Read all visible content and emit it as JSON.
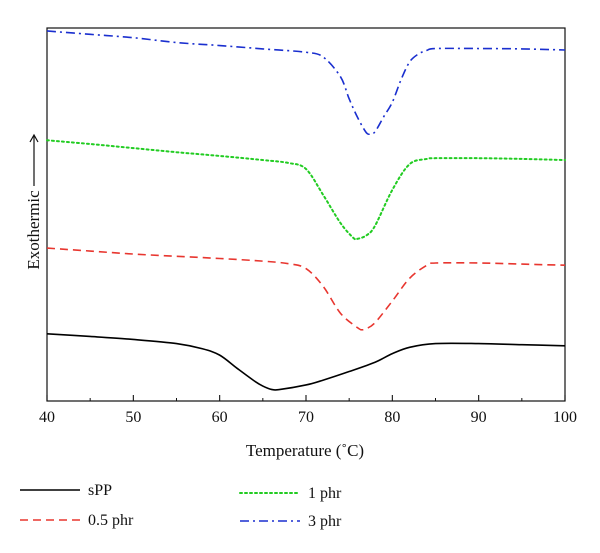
{
  "chart_data": {
    "type": "line",
    "xlabel": "Temperature (˚C)",
    "ylabel": "Exothermic",
    "xlim": [
      40,
      100
    ],
    "xticks": [
      40,
      50,
      60,
      70,
      80,
      90,
      100
    ],
    "ylim": [
      0,
      100
    ],
    "y_ticks_shown": false,
    "grid": false,
    "legend_position": "bottom",
    "series": [
      {
        "name": "sPP",
        "color": "#000000",
        "dash": "solid",
        "x": [
          40,
          45,
          50,
          55,
          58,
          60,
          62,
          64,
          65,
          66,
          67,
          70,
          72,
          75,
          78,
          80,
          82,
          85,
          90,
          95,
          100
        ],
        "y": [
          18.0,
          17.3,
          16.5,
          15.4,
          14.0,
          12.3,
          8.8,
          5.4,
          4.0,
          3.1,
          3.1,
          4.3,
          5.6,
          7.9,
          10.4,
          12.7,
          14.4,
          15.4,
          15.4,
          15.1,
          14.8
        ]
      },
      {
        "name": "0.5 phr",
        "color": "#e8362f",
        "dash": "dashed",
        "x": [
          40,
          45,
          50,
          55,
          60,
          65,
          68,
          70,
          72,
          74,
          76,
          76.5,
          77,
          78,
          80,
          82,
          84,
          85,
          90,
          95,
          100
        ],
        "y": [
          41.0,
          40.2,
          39.4,
          38.8,
          38.2,
          37.5,
          36.8,
          35.5,
          30.7,
          23.5,
          19.6,
          19.1,
          19.4,
          21.0,
          26.8,
          32.9,
          36.4,
          37.0,
          37.0,
          36.7,
          36.4
        ]
      },
      {
        "name": "1 phr",
        "color": "#22cc22",
        "dash": "dotted",
        "x": [
          40,
          45,
          50,
          55,
          60,
          65,
          68,
          70,
          72,
          74,
          75.5,
          76,
          77,
          78,
          80,
          82,
          84,
          85,
          90,
          95,
          100
        ],
        "y": [
          69.9,
          68.9,
          67.8,
          66.7,
          65.7,
          64.6,
          63.8,
          62.2,
          55.2,
          47.7,
          43.7,
          43.5,
          44.4,
          47.0,
          56.6,
          63.5,
          64.9,
          65.1,
          65.1,
          64.9,
          64.6
        ]
      },
      {
        "name": "3 phr",
        "color": "#1a2fcf",
        "dash": "dashdot",
        "x": [
          40,
          45,
          50,
          55,
          60,
          65,
          70,
          72,
          74,
          75,
          76,
          77,
          77.5,
          78,
          79,
          80,
          81,
          82,
          83,
          84,
          85,
          90,
          95,
          100
        ],
        "y": [
          99.2,
          98.3,
          97.4,
          96.1,
          95.3,
          94.4,
          93.5,
          92.2,
          86.9,
          81.0,
          75.9,
          71.9,
          71.7,
          72.2,
          76.2,
          80.1,
          86.1,
          90.9,
          93.0,
          94.0,
          94.5,
          94.5,
          94.4,
          94.1
        ]
      }
    ]
  }
}
